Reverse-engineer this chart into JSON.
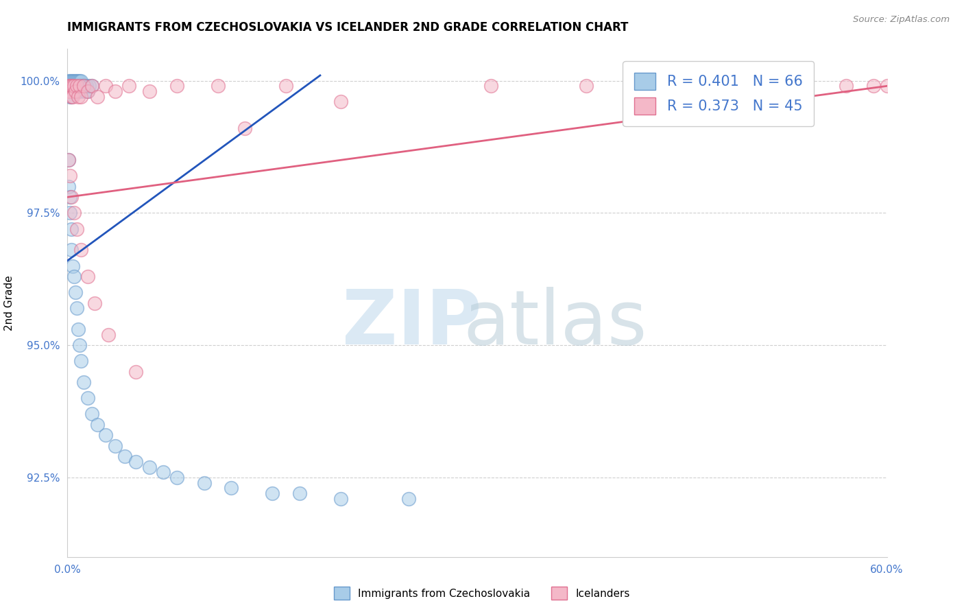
{
  "title": "IMMIGRANTS FROM CZECHOSLOVAKIA VS ICELANDER 2ND GRADE CORRELATION CHART",
  "source": "Source: ZipAtlas.com",
  "ylabel": "2nd Grade",
  "xlim": [
    0.0,
    0.6
  ],
  "ylim": [
    0.91,
    1.006
  ],
  "xticks": [
    0.0,
    0.6
  ],
  "xticklabels": [
    "0.0%",
    "60.0%"
  ],
  "yticks": [
    0.925,
    0.95,
    0.975,
    1.0
  ],
  "yticklabels": [
    "92.5%",
    "95.0%",
    "97.5%",
    "100.0%"
  ],
  "series1_label": "Immigrants from Czechoslovakia",
  "series2_label": "Icelanders",
  "series1_color": "#a8cce8",
  "series2_color": "#f4b8c8",
  "series1_edge": "#6699cc",
  "series2_edge": "#e07090",
  "trend1_color": "#2255bb",
  "trend2_color": "#e06080",
  "legend_r1": "R = 0.401",
  "legend_n1": "N = 66",
  "legend_r2": "R = 0.373",
  "legend_n2": "N = 45",
  "grid_color": "#bbbbbb",
  "tick_color": "#4477cc",
  "blue_trend": [
    0.0,
    0.966,
    0.185,
    1.001
  ],
  "pink_trend": [
    0.0,
    0.978,
    0.6,
    0.999
  ],
  "blue_x": [
    0.001,
    0.001,
    0.001,
    0.001,
    0.002,
    0.002,
    0.002,
    0.002,
    0.002,
    0.003,
    0.003,
    0.003,
    0.003,
    0.004,
    0.004,
    0.004,
    0.005,
    0.005,
    0.005,
    0.006,
    0.006,
    0.007,
    0.007,
    0.008,
    0.008,
    0.009,
    0.009,
    0.01,
    0.01,
    0.011,
    0.012,
    0.013,
    0.014,
    0.015,
    0.016,
    0.018,
    0.001,
    0.001,
    0.002,
    0.002,
    0.003,
    0.003,
    0.004,
    0.005,
    0.006,
    0.007,
    0.008,
    0.009,
    0.01,
    0.012,
    0.015,
    0.018,
    0.022,
    0.028,
    0.035,
    0.042,
    0.05,
    0.06,
    0.07,
    0.08,
    0.1,
    0.12,
    0.15,
    0.17,
    0.2,
    0.25
  ],
  "blue_y": [
    1.0,
    0.999,
    0.999,
    0.998,
    1.0,
    0.999,
    0.999,
    0.998,
    0.997,
    1.0,
    0.999,
    0.998,
    0.997,
    1.0,
    0.999,
    0.998,
    1.0,
    0.999,
    0.998,
    1.0,
    0.999,
    1.0,
    0.999,
    1.0,
    0.998,
    1.0,
    0.999,
    1.0,
    0.998,
    0.999,
    0.999,
    0.998,
    0.999,
    0.998,
    0.999,
    0.999,
    0.985,
    0.98,
    0.978,
    0.975,
    0.972,
    0.968,
    0.965,
    0.963,
    0.96,
    0.957,
    0.953,
    0.95,
    0.947,
    0.943,
    0.94,
    0.937,
    0.935,
    0.933,
    0.931,
    0.929,
    0.928,
    0.927,
    0.926,
    0.925,
    0.924,
    0.923,
    0.922,
    0.922,
    0.921,
    0.921
  ],
  "pink_x": [
    0.001,
    0.001,
    0.002,
    0.002,
    0.003,
    0.003,
    0.004,
    0.004,
    0.005,
    0.006,
    0.007,
    0.008,
    0.009,
    0.01,
    0.012,
    0.015,
    0.018,
    0.022,
    0.028,
    0.035,
    0.045,
    0.06,
    0.08,
    0.11,
    0.16,
    0.001,
    0.002,
    0.003,
    0.005,
    0.007,
    0.01,
    0.015,
    0.02,
    0.03,
    0.05,
    0.13,
    0.2,
    0.31,
    0.38,
    0.43,
    0.49,
    0.54,
    0.57,
    0.59,
    0.6
  ],
  "pink_y": [
    0.999,
    0.998,
    0.999,
    0.998,
    0.999,
    0.997,
    0.999,
    0.997,
    0.999,
    0.998,
    0.999,
    0.997,
    0.999,
    0.997,
    0.999,
    0.998,
    0.999,
    0.997,
    0.999,
    0.998,
    0.999,
    0.998,
    0.999,
    0.999,
    0.999,
    0.985,
    0.982,
    0.978,
    0.975,
    0.972,
    0.968,
    0.963,
    0.958,
    0.952,
    0.945,
    0.991,
    0.996,
    0.999,
    0.999,
    0.999,
    0.999,
    0.999,
    0.999,
    0.999,
    0.999
  ]
}
